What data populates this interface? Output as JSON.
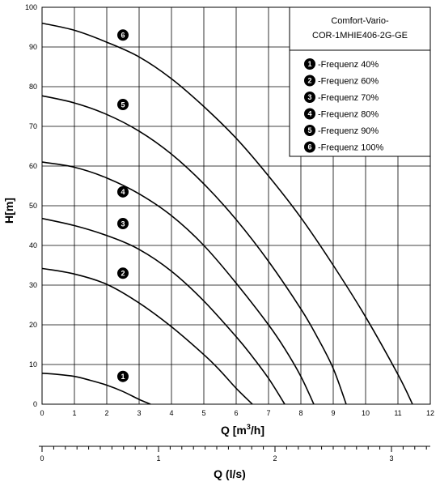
{
  "chart_data": {
    "type": "line",
    "title_lines": [
      "Comfort-Vario-",
      "COR-1MHIE406-2G-GE"
    ],
    "xlabel_main": "Q [m",
    "xlabel_sup": "3",
    "xlabel_tail": "/h]",
    "ylabel": "H[m]",
    "x2label": "Q (l/s)",
    "xlim": [
      0,
      12
    ],
    "ylim": [
      0,
      100
    ],
    "x_ticks": [
      0,
      1,
      2,
      3,
      4,
      5,
      6,
      7,
      8,
      9,
      10,
      11,
      12
    ],
    "y_ticks": [
      0,
      10,
      20,
      30,
      40,
      50,
      60,
      70,
      80,
      90,
      100
    ],
    "x2_ticks": [
      0,
      1,
      2,
      3
    ],
    "x2_per_x": 0.27778,
    "grid": true,
    "legend_position": "top-right",
    "series": [
      {
        "name": "-Frequenz 40%",
        "marker": "1",
        "marker_at": [
          2.5,
          7
        ],
        "points": [
          [
            0,
            7.8
          ],
          [
            0.5,
            7.5
          ],
          [
            1,
            7
          ],
          [
            1.5,
            6
          ],
          [
            2,
            4.8
          ],
          [
            2.5,
            3.2
          ],
          [
            3,
            1.2
          ],
          [
            3.35,
            0
          ]
        ]
      },
      {
        "name": "-Frequenz 60%",
        "marker": "2",
        "marker_at": [
          2.5,
          33
        ],
        "points": [
          [
            0,
            34.2
          ],
          [
            1,
            32.8
          ],
          [
            2,
            30.2
          ],
          [
            3,
            25.5
          ],
          [
            4,
            19.5
          ],
          [
            5,
            12.5
          ],
          [
            5.5,
            8.5
          ],
          [
            6,
            4
          ],
          [
            6.5,
            0
          ]
        ]
      },
      {
        "name": "-Frequenz 70%",
        "marker": "3",
        "marker_at": [
          2.5,
          45.5
        ],
        "points": [
          [
            0,
            46.8
          ],
          [
            1,
            45
          ],
          [
            2,
            42.5
          ],
          [
            3,
            39
          ],
          [
            4,
            33.5
          ],
          [
            5,
            26
          ],
          [
            6,
            17
          ],
          [
            6.5,
            12
          ],
          [
            7,
            6.5
          ],
          [
            7.5,
            0
          ]
        ]
      },
      {
        "name": "-Frequenz 80%",
        "marker": "4",
        "marker_at": [
          2.5,
          53.5
        ],
        "points": [
          [
            0,
            61
          ],
          [
            1,
            59.7
          ],
          [
            2,
            57
          ],
          [
            3,
            53
          ],
          [
            4,
            47.5
          ],
          [
            5,
            40
          ],
          [
            6,
            30.5
          ],
          [
            7,
            20
          ],
          [
            7.5,
            14
          ],
          [
            8,
            7
          ],
          [
            8.4,
            0
          ]
        ]
      },
      {
        "name": "-Frequenz 90%",
        "marker": "5",
        "marker_at": [
          2.5,
          75.5
        ],
        "points": [
          [
            0,
            77.7
          ],
          [
            1,
            75.9
          ],
          [
            2,
            73
          ],
          [
            3,
            68.8
          ],
          [
            4,
            63
          ],
          [
            5,
            55.5
          ],
          [
            6,
            46.5
          ],
          [
            7,
            36
          ],
          [
            8,
            24
          ],
          [
            8.5,
            17
          ],
          [
            9,
            9
          ],
          [
            9.4,
            0
          ]
        ]
      },
      {
        "name": "-Frequenz 100%",
        "marker": "6",
        "marker_at": [
          2.5,
          93
        ],
        "points": [
          [
            0,
            96
          ],
          [
            1,
            94.2
          ],
          [
            2,
            91.2
          ],
          [
            3,
            87.5
          ],
          [
            4,
            82
          ],
          [
            5,
            75
          ],
          [
            6,
            67
          ],
          [
            7,
            57.5
          ],
          [
            8,
            47
          ],
          [
            9,
            35
          ],
          [
            10,
            22
          ],
          [
            11,
            7.5
          ],
          [
            11.45,
            0
          ]
        ]
      }
    ]
  }
}
